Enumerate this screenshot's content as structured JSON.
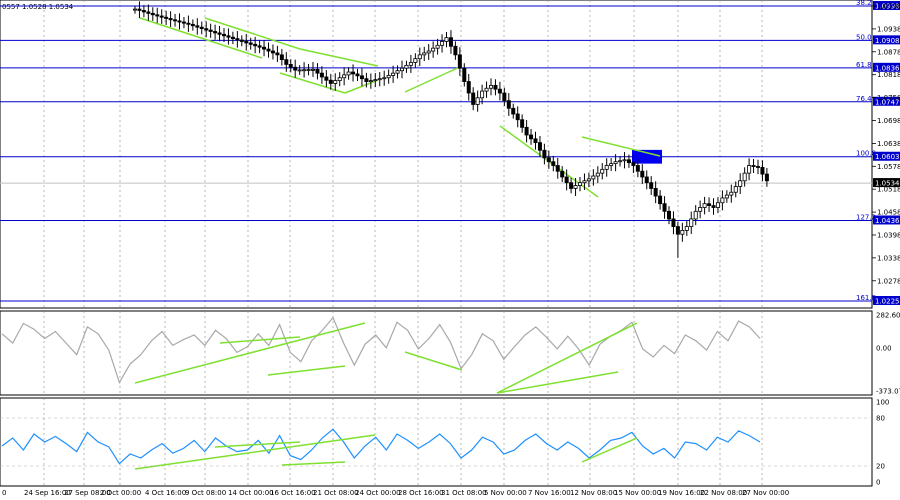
{
  "header": {
    "text": "0557 1.0528 1.0534"
  },
  "colors": {
    "background": "#ffffff",
    "candle": "#000000",
    "fib_line": "#0000cc",
    "price_line": "#c0c0c0",
    "trend_line": "#7fe030",
    "cci_line": "#a8a8a8",
    "rsi_line": "#1e90ff",
    "zone": "#0000ee",
    "grid": "#888888"
  },
  "price_axis": {
    "ylim": [
      1.0225,
      1.0998
    ],
    "ticks": [
      "1.0998",
      "1.0938",
      "1.0878",
      "1.0818",
      "1.0758",
      "1.0698",
      "1.0638",
      "1.0578",
      "1.0518",
      "1.0458",
      "1.0398",
      "1.0338",
      "1.0278"
    ]
  },
  "fib_levels": [
    {
      "ratio": "38.2",
      "value": "1.0998",
      "y": 1.0998
    },
    {
      "ratio": "50.0",
      "value": "1.0908",
      "y": 1.0908
    },
    {
      "ratio": "61.8",
      "value": "1.0836",
      "y": 1.0836
    },
    {
      "ratio": "76.4",
      "value": "1.0747",
      "y": 1.0747
    },
    {
      "ratio": "100.0",
      "value": "1.0603",
      "y": 1.0603
    },
    {
      "ratio": "127.2",
      "value": "1.0436",
      "y": 1.0436
    },
    {
      "ratio": "161.8",
      "value": "1.0225",
      "y": 1.0225
    }
  ],
  "current_price": {
    "value": "1.0534",
    "y": 1.0534
  },
  "chart_data": [
    {
      "type": "line",
      "kind": "candlestick",
      "x_labels": [
        "0",
        "24 Sep 16:00",
        "27 Sep 08:00",
        "2 Oct 00:00",
        "4 Oct 16:00",
        "9 Oct 08:00",
        "14 Oct 00:00",
        "16 Oct 16:00",
        "21 Oct 08:00",
        "24 Oct 00:00",
        "28 Oct 16:00",
        "31 Oct 08:00",
        "5 Nov 00:00",
        "7 Nov 16:00",
        "12 Nov 08:00",
        "15 Nov 00:00",
        "19 Nov 16:00",
        "22 Nov 08:00",
        "27 Nov 00:00"
      ],
      "close_path": [
        [
          0,
          1.099
        ],
        [
          2,
          1.0975
        ],
        [
          4,
          1.0962
        ],
        [
          6,
          1.095
        ],
        [
          8,
          1.0935
        ],
        [
          10,
          1.092
        ],
        [
          12,
          1.0905
        ],
        [
          14,
          1.089
        ],
        [
          16,
          1.087
        ],
        [
          17,
          1.0845
        ],
        [
          18,
          1.083
        ],
        [
          20,
          1.0832
        ],
        [
          21,
          1.0812
        ],
        [
          22,
          1.0795
        ],
        [
          24,
          1.0825
        ],
        [
          25,
          1.0815
        ],
        [
          26,
          1.08
        ],
        [
          27,
          1.0805
        ],
        [
          28,
          1.081
        ],
        [
          29,
          1.0822
        ],
        [
          30,
          1.0835
        ],
        [
          31,
          1.085
        ],
        [
          32,
          1.087
        ],
        [
          33,
          1.088
        ],
        [
          34,
          1.0895
        ],
        [
          35,
          1.0915
        ],
        [
          36,
          1.087
        ],
        [
          37,
          1.08
        ],
        [
          38,
          1.074
        ],
        [
          39,
          1.0775
        ],
        [
          40,
          1.079
        ],
        [
          41,
          1.077
        ],
        [
          42,
          1.073
        ],
        [
          43,
          1.07
        ],
        [
          44,
          1.066
        ],
        [
          45,
          1.064
        ],
        [
          46,
          1.06
        ],
        [
          47,
          1.058
        ],
        [
          48,
          1.055
        ],
        [
          49,
          1.052
        ],
        [
          50,
          1.0535
        ],
        [
          51,
          1.0545
        ],
        [
          52,
          1.056
        ],
        [
          53,
          1.058
        ],
        [
          54,
          1.059
        ],
        [
          55,
          1.0595
        ],
        [
          56,
          1.058
        ],
        [
          57,
          1.055
        ],
        [
          58,
          1.052
        ],
        [
          59,
          1.048
        ],
        [
          60,
          1.044
        ],
        [
          61,
          1.04
        ],
        [
          62,
          1.042
        ],
        [
          63,
          1.046
        ],
        [
          64,
          1.048
        ],
        [
          65,
          1.047
        ],
        [
          66,
          1.0495
        ],
        [
          67,
          1.051
        ],
        [
          68,
          1.054
        ],
        [
          69,
          1.058
        ],
        [
          70,
          1.0575
        ],
        [
          71,
          1.054
        ]
      ],
      "key_values": {
        "high": 1.0998,
        "low": 1.0338,
        "last": 1.0534
      }
    },
    {
      "type": "line",
      "kind": "CCI",
      "ylim": [
        -373.0709,
        282.6012
      ],
      "ticks": [
        "282.6012",
        "0.00",
        "-373.0709"
      ],
      "values": [
        120,
        40,
        210,
        160,
        80,
        140,
        40,
        -60,
        180,
        120,
        -20,
        -300,
        -140,
        -60,
        60,
        140,
        20,
        70,
        110,
        20,
        150,
        80,
        -40,
        10,
        120,
        20,
        200,
        -40,
        -120,
        60,
        150,
        260,
        40,
        -150,
        30,
        110,
        0,
        220,
        150,
        -10,
        80,
        200,
        50,
        -180,
        -60,
        120,
        60,
        -100,
        10,
        110,
        180,
        90,
        -10,
        100,
        -10,
        -150,
        30,
        100,
        150,
        220,
        -10,
        -80,
        20,
        -50,
        110,
        60,
        -20,
        140,
        60,
        230,
        180,
        80
      ]
    },
    {
      "type": "line",
      "kind": "RSI",
      "ylim": [
        0,
        100
      ],
      "ticks": [
        "100",
        "80",
        "20",
        "0"
      ],
      "values": [
        45,
        55,
        40,
        60,
        50,
        57,
        48,
        38,
        62,
        50,
        44,
        23,
        35,
        30,
        40,
        48,
        36,
        42,
        52,
        38,
        55,
        45,
        38,
        40,
        52,
        36,
        58,
        33,
        28,
        40,
        55,
        66,
        50,
        30,
        45,
        56,
        40,
        60,
        52,
        42,
        50,
        60,
        48,
        30,
        40,
        56,
        50,
        35,
        40,
        52,
        60,
        48,
        40,
        50,
        42,
        30,
        40,
        52,
        55,
        62,
        45,
        35,
        42,
        30,
        50,
        48,
        40,
        56,
        50,
        64,
        58,
        50
      ]
    }
  ],
  "rsi_axis": {
    "ticks": [
      "100",
      "80",
      "20",
      "0"
    ]
  },
  "cci_axis": {
    "ticks": [
      "282.6012",
      "0.00",
      "-373.0709"
    ]
  }
}
